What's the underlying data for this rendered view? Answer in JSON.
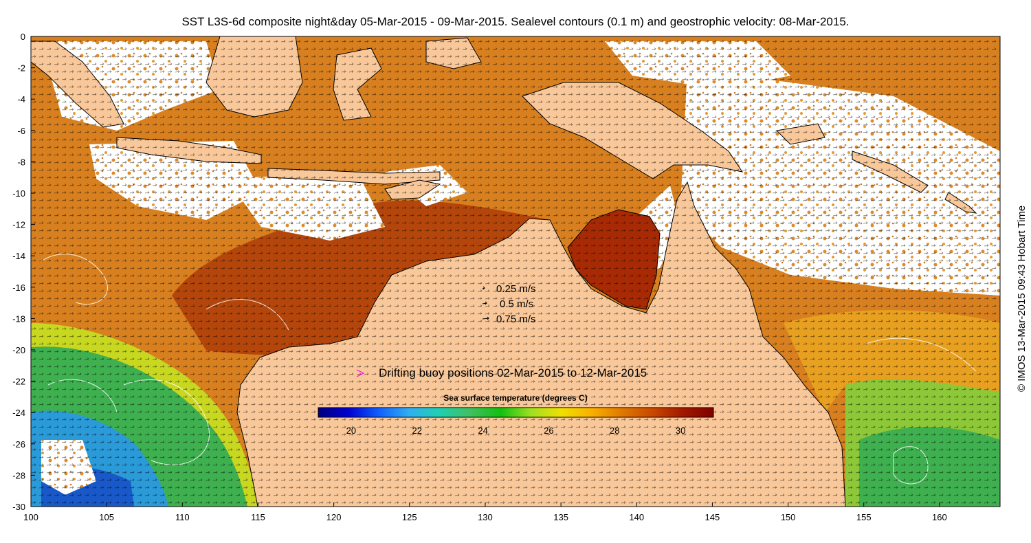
{
  "title": "SST L3S-6d composite night&day 05-Mar-2015 - 09-Mar-2015. Sealevel contours (0.1 m) and geostrophic velocity: 08-Mar-2015.",
  "credit": "© IMOS 13-Mar-2015 09:43 Hobart Time",
  "axes": {
    "x_ticks": [
      "100",
      "105",
      "110",
      "115",
      "120",
      "125",
      "130",
      "135",
      "140",
      "145",
      "150",
      "155",
      "160"
    ],
    "y_ticks": [
      "0",
      "-2",
      "-4",
      "-6",
      "-8",
      "-10",
      "-12",
      "-14",
      "-16",
      "-18",
      "-20",
      "-22",
      "-24",
      "-26",
      "-28",
      "-30"
    ],
    "lon_range": [
      100,
      164
    ],
    "lat_range": [
      -30,
      0
    ]
  },
  "velocity_legend": [
    {
      "label": "0.25 m/s"
    },
    {
      "label": "0.5 m/s"
    },
    {
      "label": "0.75 m/s"
    }
  ],
  "buoy_legend": {
    "label": "Drifting buoy positions 02-Mar-2015 to 12-Mar-2015",
    "color": "#ff00ff"
  },
  "colorbar": {
    "title": "Sea surface temperature (degrees C)",
    "ticks": [
      "20",
      "22",
      "24",
      "26",
      "28",
      "30"
    ],
    "range": [
      19,
      31
    ],
    "stops": [
      "#00007f",
      "#0000d0",
      "#1060ff",
      "#30b0f0",
      "#20d0b0",
      "#40c060",
      "#10c010",
      "#a0e020",
      "#f0e000",
      "#f8b000",
      "#e07800",
      "#c84800",
      "#a01800",
      "#800000"
    ]
  },
  "colors": {
    "land": "#f9c89a",
    "warm_sea": "#d87f1e",
    "hot_sea": "#a82a05",
    "cool_sea": "#3fb050",
    "cold_sea": "#2a8ee0",
    "cloud": "#ffffff"
  }
}
